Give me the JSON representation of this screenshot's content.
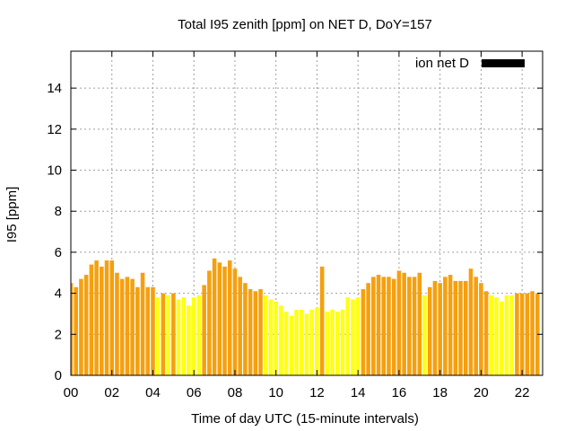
{
  "chart_data": {
    "type": "bar",
    "title": "Total I95 zenith [ppm] on NET D, DoY=157",
    "xlabel": "Time of day UTC (15-minute intervals)",
    "ylabel": "I95 [ppm]",
    "xlim": [
      0,
      23
    ],
    "ylim": [
      0,
      15.8
    ],
    "xticks": [
      "00",
      "02",
      "04",
      "06",
      "08",
      "10",
      "12",
      "14",
      "16",
      "18",
      "20",
      "22"
    ],
    "yticks": [
      "0",
      "2",
      "4",
      "6",
      "8",
      "10",
      "12",
      "14"
    ],
    "grid": true,
    "legend": {
      "position": "top-right",
      "label": "ion net D",
      "swatch_color": "#000000"
    },
    "colors": {
      "orange": "#f5a00f",
      "yellow": "#ffff14"
    },
    "series": [
      {
        "values": [
          4.5,
          4.3,
          4.7,
          4.9,
          5.4,
          5.6,
          5.3,
          5.6,
          5.6,
          5.0,
          4.7,
          4.8,
          4.7,
          4.3,
          5.0,
          4.3,
          4.3,
          3.8,
          4.0,
          3.9,
          4.0,
          3.7,
          3.8,
          3.4,
          3.8,
          3.9,
          4.4,
          5.1,
          5.7,
          5.5,
          5.3,
          5.6,
          5.2,
          4.8,
          4.5,
          4.2,
          4.1,
          4.2,
          3.9,
          3.7,
          3.6,
          3.4,
          3.1,
          2.9,
          3.2,
          3.2,
          3.0,
          3.2,
          3.3,
          5.3,
          3.1,
          3.2,
          3.1,
          3.2,
          3.8,
          3.7,
          3.8,
          4.2,
          4.5,
          4.8,
          4.9,
          4.8,
          4.8,
          4.7,
          5.1,
          5.0,
          4.8,
          4.8,
          5.0,
          3.9,
          4.3,
          4.6,
          4.5,
          4.8,
          4.9,
          4.6,
          4.6,
          4.6,
          5.2,
          4.8,
          4.5,
          4.1,
          3.9,
          3.8,
          3.6,
          3.9,
          3.9,
          4.0,
          4.0,
          4.0,
          4.1,
          4.0
        ],
        "colors": [
          "orange",
          "orange",
          "orange",
          "orange",
          "orange",
          "orange",
          "orange",
          "orange",
          "orange",
          "orange",
          "orange",
          "orange",
          "orange",
          "orange",
          "orange",
          "orange",
          "orange",
          "yellow",
          "orange",
          "yellow",
          "orange",
          "yellow",
          "yellow",
          "yellow",
          "yellow",
          "yellow",
          "orange",
          "orange",
          "orange",
          "orange",
          "orange",
          "orange",
          "orange",
          "orange",
          "orange",
          "orange",
          "orange",
          "orange",
          "yellow",
          "yellow",
          "yellow",
          "yellow",
          "yellow",
          "yellow",
          "yellow",
          "yellow",
          "yellow",
          "yellow",
          "yellow",
          "orange",
          "yellow",
          "yellow",
          "yellow",
          "yellow",
          "yellow",
          "yellow",
          "yellow",
          "orange",
          "orange",
          "orange",
          "orange",
          "orange",
          "orange",
          "orange",
          "orange",
          "orange",
          "orange",
          "orange",
          "orange",
          "yellow",
          "orange",
          "orange",
          "orange",
          "orange",
          "orange",
          "orange",
          "orange",
          "orange",
          "orange",
          "orange",
          "orange",
          "orange",
          "yellow",
          "yellow",
          "yellow",
          "yellow",
          "yellow",
          "orange",
          "orange",
          "orange",
          "orange",
          "orange"
        ]
      }
    ]
  }
}
